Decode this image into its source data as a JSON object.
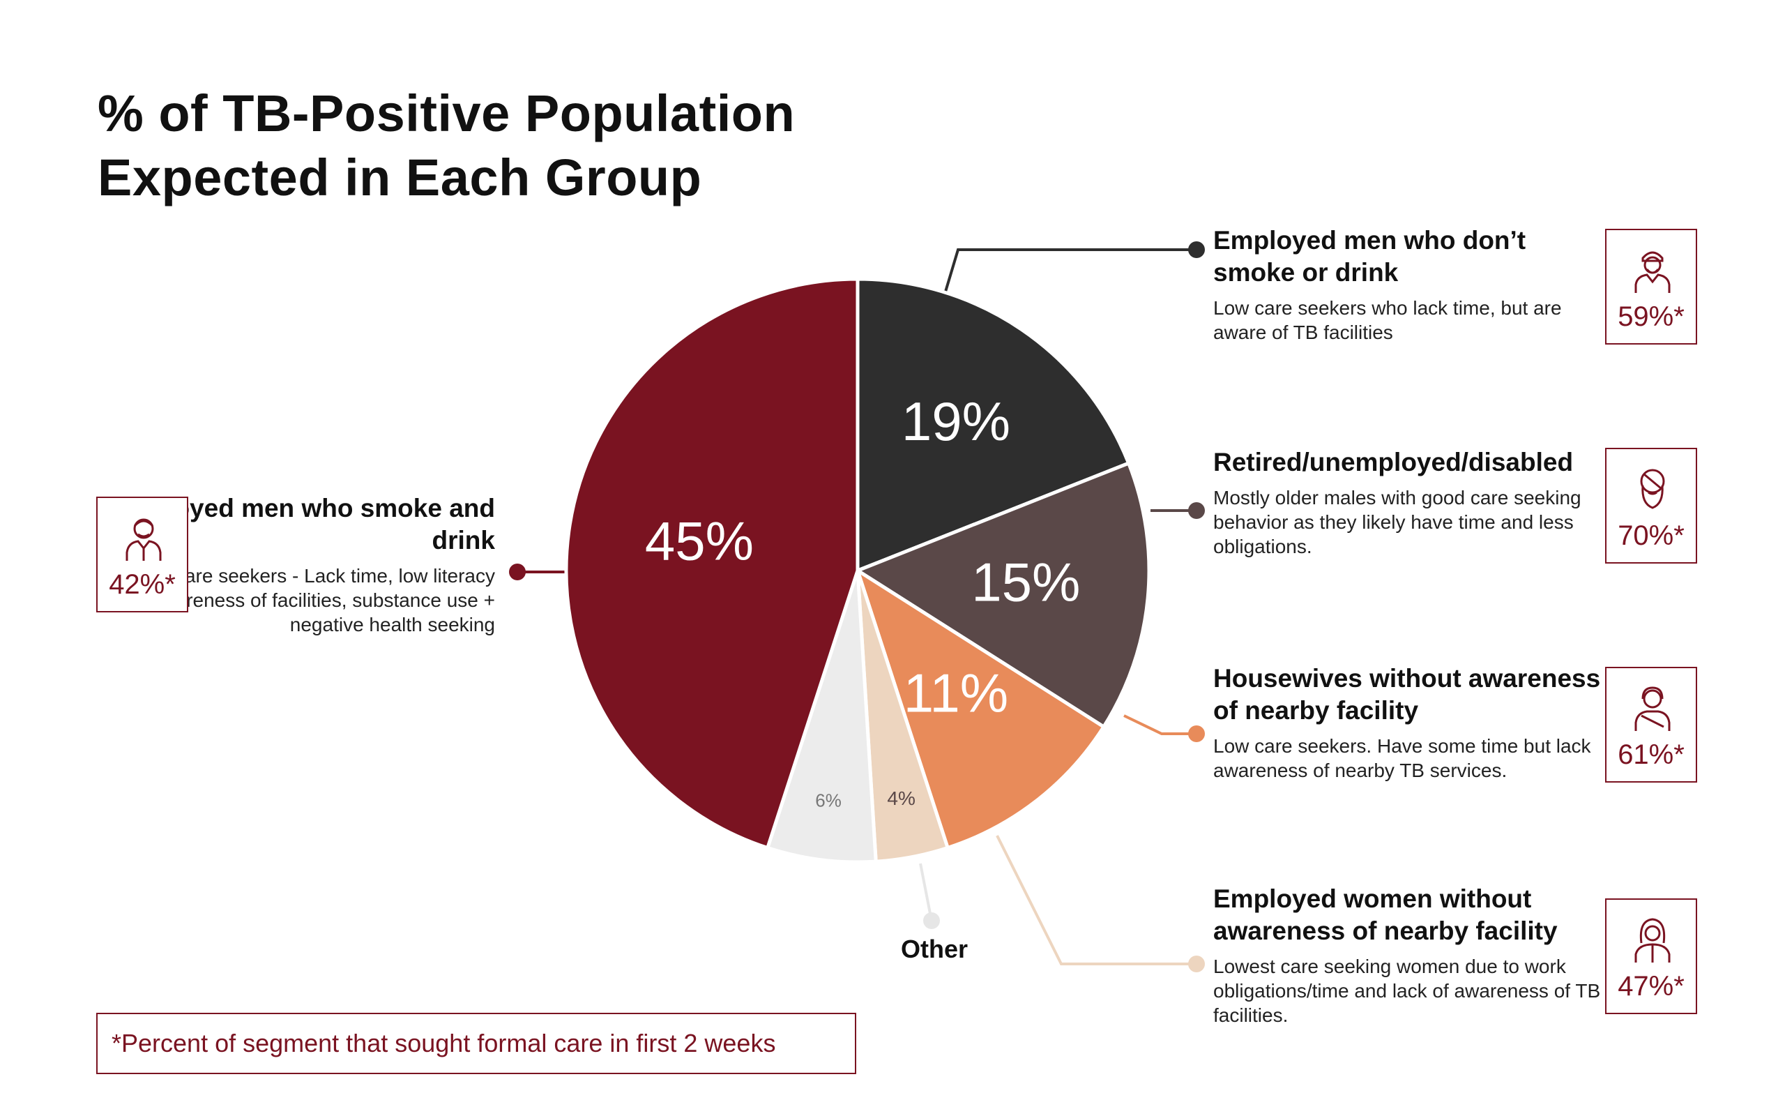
{
  "title": {
    "line1": "% of TB-Positive Population",
    "line2": "Expected in Each Group"
  },
  "chart_data": {
    "type": "pie",
    "slices": [
      {
        "label": "Employed men who don’t smoke or drink",
        "value": 19,
        "value_label": "19%",
        "color": "#2e2e2e"
      },
      {
        "label": "Retired/unemployed/disabled",
        "value": 15,
        "value_label": "15%",
        "color": "#5a4848"
      },
      {
        "label": "Housewives without awareness of nearby facility",
        "value": 11,
        "value_label": "11%",
        "color": "#e88b5a"
      },
      {
        "label": "Employed women without awareness of nearby facility",
        "value": 4,
        "value_label": "4%",
        "color": "#edd5bf"
      },
      {
        "label": "Other",
        "value": 6,
        "value_label": "6%",
        "color": "#ececec"
      },
      {
        "label": "Employed men who smoke and drink",
        "value": 45,
        "value_label": "45%",
        "color": "#7a1321"
      }
    ]
  },
  "segments": [
    {
      "head": "Employed men who smoke and drink",
      "desc": "Worst care seekers - Lack time, low literacy + awareness of facilities, substance use + negative health seeking",
      "care_pct": "42%*",
      "icon": "man-icon",
      "line_color": "#7a1321"
    },
    {
      "head": "Employed men who don’t smoke or drink",
      "desc": "Low care seekers who lack time, but are aware of TB facilities",
      "care_pct": "59%*",
      "icon": "turbaned-man-icon",
      "line_color": "#2e2e2e"
    },
    {
      "head": "Retired/unemployed/disabled",
      "desc": "Mostly older males with good care seeking behavior as they likely have time and less obligations.",
      "care_pct": "70%*",
      "icon": "old-man-icon",
      "line_color": "#5a4848"
    },
    {
      "head": "Housewives without awareness of nearby facility",
      "desc": "Low care seekers. Have some time but lack awareness of nearby TB services.",
      "care_pct": "61%*",
      "icon": "woman-icon",
      "line_color": "#e88b5a"
    },
    {
      "head": "Employed women without awareness of nearby facility",
      "desc": "Lowest care seeking women due to work obligations/time and lack of awareness of TB facilities.",
      "care_pct": "47%*",
      "icon": "veiled-woman-icon",
      "line_color": "#edd5bf"
    }
  ],
  "other_label": "Other",
  "footnote": "*Percent of segment that sought formal care in first 2 weeks",
  "colors": {
    "accent": "#7a1321",
    "other_line": "#e6e6e6"
  }
}
